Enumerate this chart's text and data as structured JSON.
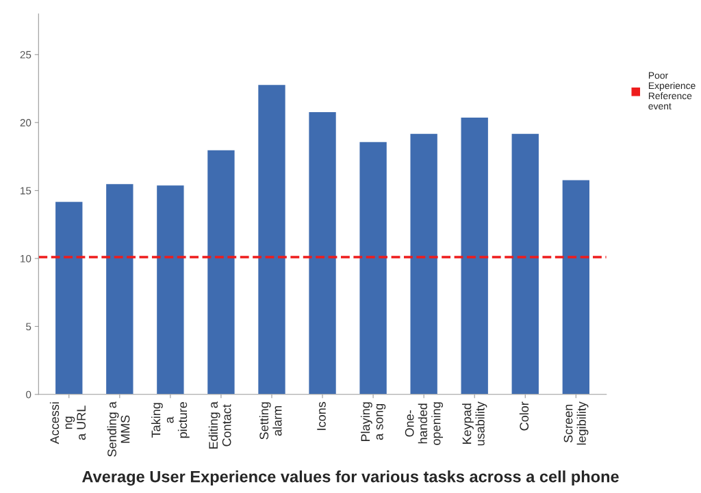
{
  "chart_data": {
    "type": "bar",
    "title": "Average User Experience values for various tasks across a cell phone",
    "categories": [
      "Accessi\nng\na URL",
      "Sending a\nMMS",
      "Taking\na\npicture",
      "Editing a\nContact",
      "Setting\nalarm",
      "Icons",
      "Playing\na song",
      "One-\nhanded\nopening",
      "Keypad\nusability",
      "Color",
      "Screen\nlegibility"
    ],
    "values": [
      14.2,
      15.5,
      15.4,
      18.0,
      22.8,
      20.8,
      18.6,
      19.2,
      20.4,
      19.2,
      15.8
    ],
    "color": "#3f6cb0",
    "ylim": [
      0,
      28
    ],
    "yticks": [
      0,
      5,
      10,
      15,
      20,
      25
    ],
    "grid": false,
    "legend": "top right",
    "ref_lines": [
      {
        "axis": "y",
        "value": 10.1,
        "label": "Poor\nExperience\nReference\nevent",
        "color": "#ee1c1c",
        "line_style": "dashed"
      }
    ]
  }
}
